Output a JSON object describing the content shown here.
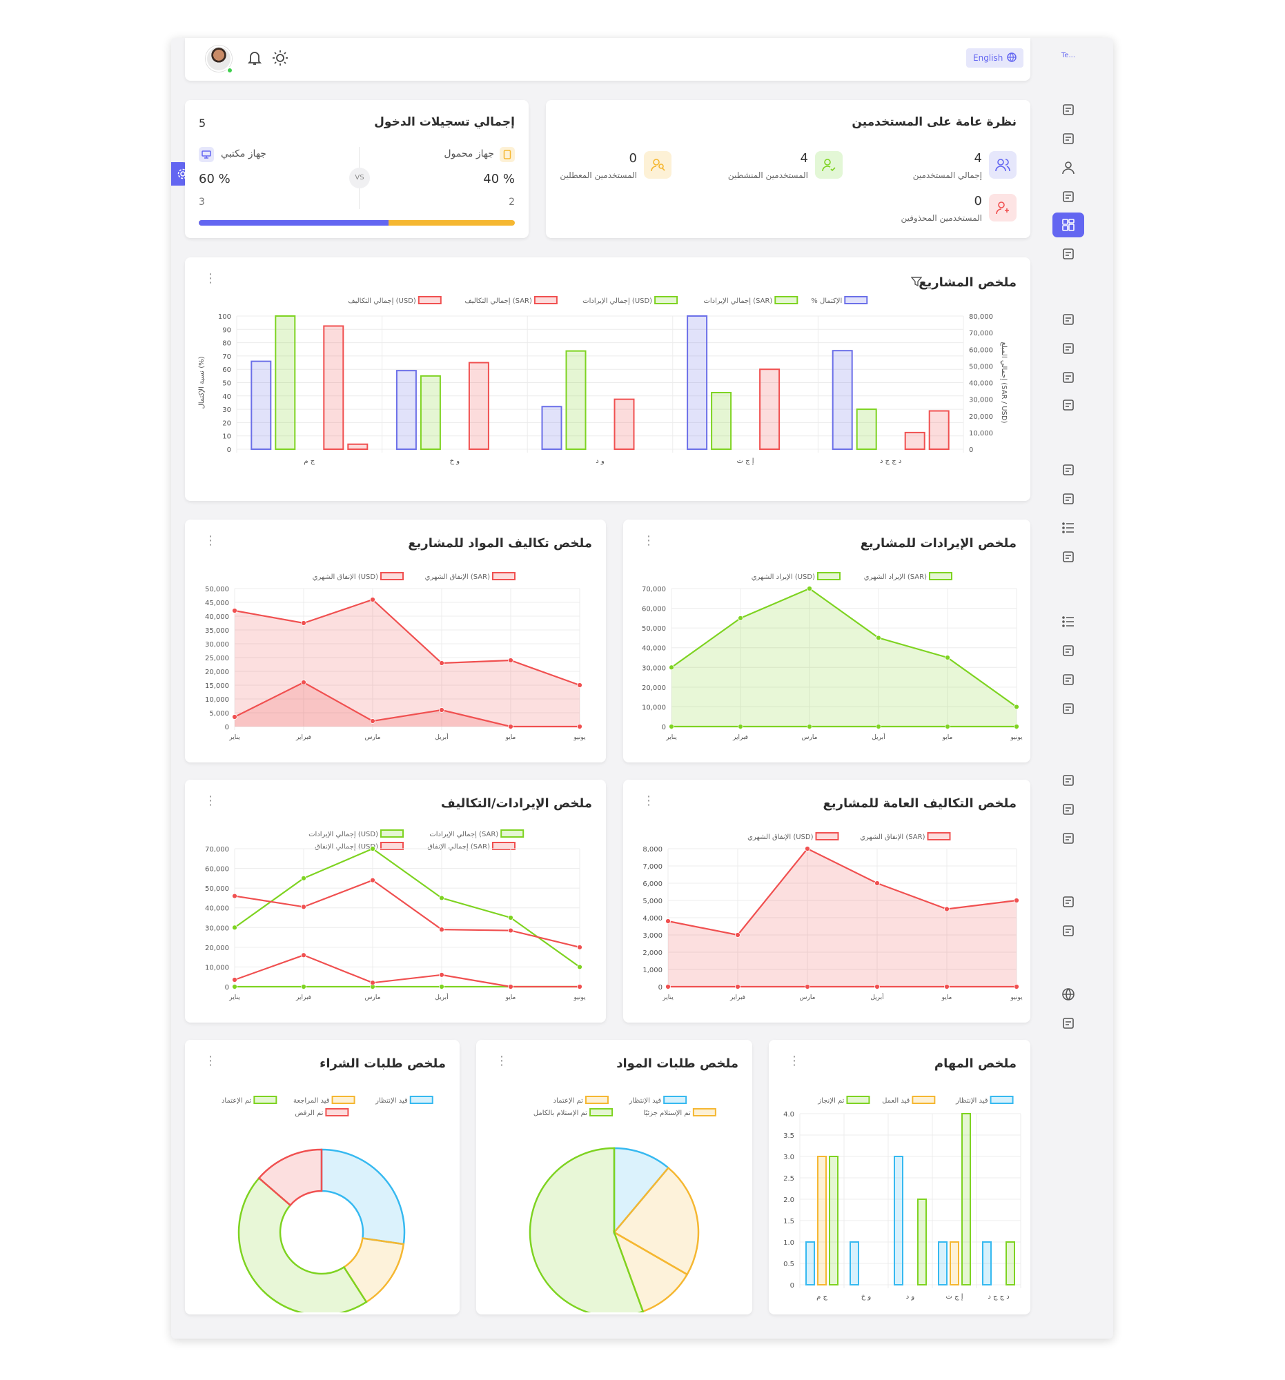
{
  "header": {
    "lang_button": "English",
    "logo_text": "Te..."
  },
  "colors": {
    "accent": "#6366f1",
    "green": "#7ed321",
    "red": "#f05050",
    "orange": "#f5b731",
    "blue": "#36b9f0",
    "purple": "#6b6fe8"
  },
  "login": {
    "title": "إجمالي تسجيلات الدخول",
    "total": "5",
    "vs": "VS",
    "laptop": {
      "label": "جهاز محمول",
      "pct": "% 40",
      "count": "2",
      "fraction": 0.4
    },
    "desktop": {
      "label": "جهاز مكتبي",
      "pct": "% 60",
      "count": "3",
      "fraction": 0.6
    }
  },
  "users": {
    "title": "نظرة عامة على المستخدمين",
    "total": {
      "value": "4",
      "label": "إجمالي المستخدمين"
    },
    "active": {
      "value": "4",
      "label": "المستخدمين المنشطين"
    },
    "disabled": {
      "value": "0",
      "label": "المستخدمين المعطلين"
    },
    "deleted": {
      "value": "0",
      "label": "المستخدمين المحذوفين"
    }
  },
  "titles": {
    "projects": "ملخص المشاريع",
    "revenue": "ملخص الإيرادات للمشاريع",
    "material_costs": "ملخص تكاليف المواد للمشاريع",
    "general_costs": "ملخص التكاليف العامة للمشاريع",
    "rev_costs": "ملخص الإيرادات/التكاليف",
    "tasks": "ملخص المهام",
    "material_requests": "ملخص طلبات المواد",
    "purchase_requests": "ملخص طلبات الشراء"
  },
  "chart_data": [
    {
      "id": "projects",
      "type": "bar",
      "categories": [
        "ج م",
        "و خ",
        "و د",
        "إ ج ت",
        "د ج ج د"
      ],
      "series": [
        {
          "name": "% الإكتمال",
          "axis": "left",
          "color": "#6b6fe8",
          "values": [
            66,
            59,
            32,
            100,
            74
          ]
        },
        {
          "name": "إجمالي الإيرادات (SAR)",
          "axis": "right",
          "color": "#7ed321",
          "values": [
            80000,
            44000,
            59000,
            34000,
            24000
          ]
        },
        {
          "name": "إجمالي الإيرادات (USD)",
          "axis": "right",
          "color": "#7ed321",
          "values": [
            0,
            0,
            0,
            0,
            0
          ]
        },
        {
          "name": "إجمالي التكاليف (SAR)",
          "axis": "right",
          "color": "#f05050",
          "values": [
            74000,
            52000,
            30000,
            48000,
            10000
          ]
        },
        {
          "name": "إجمالي التكاليف (USD)",
          "axis": "right",
          "color": "#f05050",
          "values": [
            3000,
            0,
            0,
            0,
            23000
          ]
        }
      ],
      "yticks_left": [
        "100",
        "90",
        "80",
        "70",
        "60",
        "50",
        "40",
        "30",
        "20",
        "10",
        "0"
      ],
      "yticks_right": [
        "80,000",
        "70,000",
        "60,000",
        "50,000",
        "40,000",
        "30,000",
        "20,000",
        "10,000",
        "0"
      ],
      "ylim_left": [
        0,
        100
      ],
      "ylim_right": [
        0,
        80000
      ],
      "ylabel_left": "نسبة الإكتمال (%)",
      "ylabel_right": "إجمالي المبلغ (SAR / USD)"
    },
    {
      "id": "revenue",
      "type": "area",
      "categories": [
        "يناير",
        "فبراير",
        "مارس",
        "أبريل",
        "مايو",
        "يونيو"
      ],
      "series": [
        {
          "name": "الإيراد الشهري (SAR)",
          "color": "#7ed321",
          "values": [
            30000,
            55000,
            70000,
            45000,
            35000,
            10000
          ]
        },
        {
          "name": "الإيراد الشهري (USD)",
          "color": "#7ed321",
          "values": [
            0,
            0,
            0,
            0,
            0,
            0
          ]
        }
      ],
      "yticks": [
        "70,000",
        "60,000",
        "50,000",
        "40,000",
        "30,000",
        "20,000",
        "10,000",
        "0"
      ],
      "ylim": [
        0,
        70000
      ]
    },
    {
      "id": "material_costs",
      "type": "area",
      "categories": [
        "يناير",
        "فبراير",
        "مارس",
        "أبريل",
        "مايو",
        "يونيو"
      ],
      "series": [
        {
          "name": "الإنفاق الشهري (SAR)",
          "color": "#f05050",
          "values": [
            42000,
            37500,
            46000,
            23000,
            24000,
            15000
          ]
        },
        {
          "name": "الإنفاق الشهري (USD)",
          "color": "#f05050",
          "values": [
            3500,
            16000,
            2000,
            6000,
            0,
            0
          ]
        }
      ],
      "yticks": [
        "50,000",
        "45,000",
        "40,000",
        "35,000",
        "30,000",
        "25,000",
        "20,000",
        "15,000",
        "10,000",
        "5,000",
        "0"
      ],
      "ylim": [
        0,
        50000
      ]
    },
    {
      "id": "general_costs",
      "type": "area",
      "categories": [
        "يناير",
        "فبراير",
        "مارس",
        "أبريل",
        "مايو",
        "يونيو"
      ],
      "series": [
        {
          "name": "الإنفاق الشهري (SAR)",
          "color": "#f05050",
          "values": [
            3800,
            3000,
            8000,
            6000,
            4500,
            5000
          ]
        },
        {
          "name": "الإنفاق الشهري (USD)",
          "color": "#f05050",
          "values": [
            0,
            0,
            0,
            0,
            0,
            0
          ]
        }
      ],
      "yticks": [
        "8,000",
        "7,000",
        "6,000",
        "5,000",
        "4,000",
        "3,000",
        "2,000",
        "1,000",
        "0"
      ],
      "ylim": [
        0,
        8000
      ]
    },
    {
      "id": "rev_costs",
      "type": "line",
      "categories": [
        "يناير",
        "فبراير",
        "مارس",
        "أبريل",
        "مايو",
        "يونيو"
      ],
      "series": [
        {
          "name": "إجمالي الإيرادات (SAR)",
          "color": "#7ed321",
          "values": [
            30000,
            55000,
            70000,
            45000,
            35000,
            10000
          ]
        },
        {
          "name": "إجمالي الإيرادات (USD)",
          "color": "#7ed321",
          "values": [
            0,
            0,
            0,
            0,
            0,
            0
          ]
        },
        {
          "name": "إجمالي الإنفاق (SAR)",
          "color": "#f05050",
          "values": [
            46000,
            40500,
            54000,
            29000,
            28500,
            20000
          ]
        },
        {
          "name": "إجمالي الإنفاق (USD)",
          "color": "#f05050",
          "values": [
            3500,
            16000,
            2000,
            6000,
            0,
            0
          ]
        }
      ],
      "yticks": [
        "70,000",
        "60,000",
        "50,000",
        "40,000",
        "30,000",
        "20,000",
        "10,000",
        "0"
      ],
      "ylim": [
        0,
        70000
      ]
    },
    {
      "id": "tasks",
      "type": "bar",
      "categories": [
        "ج م",
        "و خ",
        "و د",
        "إ ج ت",
        "د ج ج د"
      ],
      "series": [
        {
          "name": "قيد الإنتظار",
          "color": "#36b9f0",
          "values": [
            1,
            1,
            3,
            1,
            1
          ]
        },
        {
          "name": "قيد العمل",
          "color": "#f5b731",
          "values": [
            3,
            0,
            0,
            1,
            0
          ]
        },
        {
          "name": "تم الإنجاز",
          "color": "#7ed321",
          "values": [
            3,
            0,
            2,
            4,
            1
          ]
        }
      ],
      "yticks": [
        "4.0",
        "3.5",
        "3.0",
        "2.5",
        "2.0",
        "1.5",
        "1.0",
        "0.5",
        "0"
      ],
      "ylim": [
        0,
        4
      ]
    },
    {
      "id": "material_requests",
      "type": "pie",
      "series": [
        {
          "name": "قيد الإنتظار",
          "color": "#36b9f0",
          "value": 1
        },
        {
          "name": "تم الإعتماد",
          "color": "#f5b731",
          "value": 2
        },
        {
          "name": "تم الإستلام جزئيًا",
          "color": "#f5b731",
          "value": 1
        },
        {
          "name": "تم الإستلام بالكامل",
          "color": "#7ed321",
          "value": 5
        }
      ]
    },
    {
      "id": "purchase_requests",
      "type": "doughnut",
      "series": [
        {
          "name": "قيد الإنتظار",
          "color": "#36b9f0",
          "value": 3
        },
        {
          "name": "قيد المراجعة",
          "color": "#f5b731",
          "value": 1.5
        },
        {
          "name": "تم الإعتماد",
          "color": "#7ed321",
          "value": 5
        },
        {
          "name": "تم الرفض",
          "color": "#f05050",
          "value": 1.5
        }
      ]
    }
  ]
}
